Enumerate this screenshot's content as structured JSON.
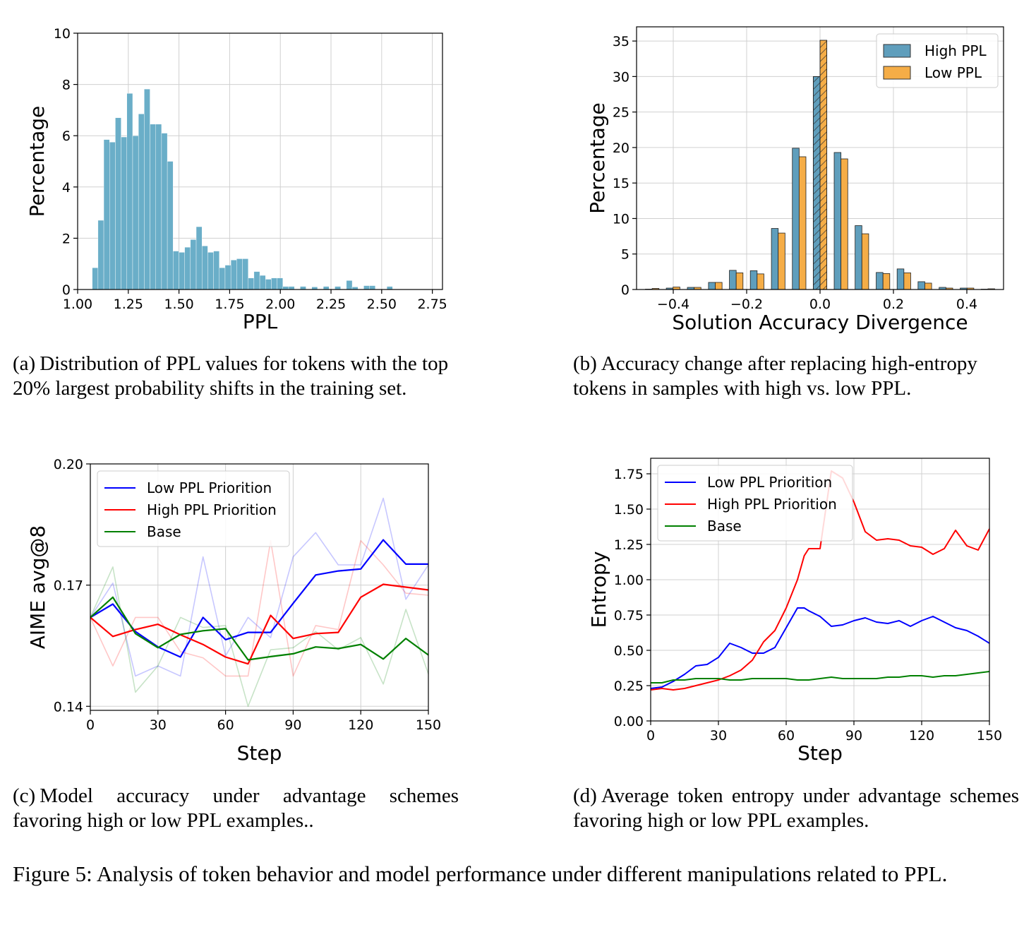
{
  "panels": {
    "a": {
      "caption_prefix": "(a)",
      "caption": "Distribution of PPL values for tokens with the top 20% largest probability shifts in the training set."
    },
    "b": {
      "caption_prefix": "(b)",
      "caption": "Accuracy change after replacing high-entropy tokens in samples with high vs. low PPL."
    },
    "c": {
      "caption_prefix": "(c)",
      "caption": "Model accuracy under advantage schemes favoring high or low PPL examples.."
    },
    "d": {
      "caption_prefix": "(d)",
      "caption": "Average token entropy under advantage schemes favoring high or low PPL examples."
    }
  },
  "figure_caption": "Figure 5: Analysis of token behavior and model performance under different manipulations related to PPL.",
  "colors": {
    "hist": "#6aaec8",
    "high_ppl_bar": "#5f9ebc",
    "low_ppl_bar": "#f5ad47",
    "blue": "#0000ff",
    "red": "#ff0000",
    "green": "#008000",
    "grid": "#d0d0d0"
  },
  "chart_data": [
    {
      "id": "a",
      "type": "bar",
      "xlabel": "PPL",
      "ylabel": "Percentage",
      "xlim": [
        1.0,
        2.8
      ],
      "ylim": [
        0,
        10
      ],
      "xticks": [
        1.0,
        1.25,
        1.5,
        1.75,
        2.0,
        2.25,
        2.5,
        2.75
      ],
      "xtick_labels": [
        "1.00",
        "1.25",
        "1.50",
        "1.75",
        "2.00",
        "2.25",
        "2.50",
        "2.75"
      ],
      "yticks": [
        0,
        2,
        4,
        6,
        8,
        10
      ],
      "ytick_labels": [
        "0",
        "2",
        "4",
        "6",
        "8",
        "10"
      ],
      "grid": true,
      "bin_width": 0.0285,
      "bin_start": 1.072,
      "values": [
        0.85,
        2.7,
        5.85,
        5.75,
        6.7,
        5.95,
        7.65,
        6.0,
        6.85,
        7.82,
        6.45,
        6.45,
        6.1,
        5.0,
        1.5,
        1.45,
        1.65,
        1.95,
        2.45,
        1.7,
        1.45,
        1.5,
        0.85,
        0.95,
        1.15,
        1.2,
        1.2,
        0.45,
        0.7,
        0.55,
        0.4,
        0.45,
        0.45,
        0.12,
        0.12,
        0,
        0.12,
        0,
        0.1,
        0,
        0.12,
        0,
        0.12,
        0,
        0.35,
        0.1,
        0,
        0.15,
        0.15,
        0,
        0,
        0.12
      ]
    },
    {
      "id": "b",
      "type": "bar",
      "xlabel": "Solution Accuracy Divergence",
      "ylabel": "Percentage",
      "xlim": [
        -0.5,
        0.5
      ],
      "ylim": [
        0,
        37
      ],
      "xticks": [
        -0.4,
        -0.2,
        0.0,
        0.2,
        0.4
      ],
      "xtick_labels": [
        "−0.4",
        "−0.2",
        "0.0",
        "0.2",
        "0.4"
      ],
      "yticks": [
        0,
        5,
        10,
        15,
        20,
        25,
        30,
        35
      ],
      "ytick_labels": [
        "0",
        "5",
        "10",
        "15",
        "20",
        "25",
        "30",
        "35"
      ],
      "grid": true,
      "legend_position": "top-right",
      "categories": [
        -0.4575,
        -0.4005,
        -0.343,
        -0.2855,
        -0.2285,
        -0.1715,
        -0.114,
        -0.057,
        0.0,
        0.057,
        0.114,
        0.1715,
        0.2285,
        0.2855,
        0.343,
        0.4005,
        0.4575
      ],
      "series": [
        {
          "name": "High PPL",
          "values": [
            0.05,
            0.2,
            0.3,
            1.0,
            2.7,
            2.65,
            8.6,
            19.9,
            30.0,
            19.3,
            9.0,
            2.4,
            2.9,
            1.1,
            0.3,
            0.2,
            0.05
          ]
        },
        {
          "name": "Low PPL",
          "values": [
            0.15,
            0.35,
            0.3,
            1.0,
            2.35,
            2.2,
            7.95,
            18.7,
            35.1,
            18.4,
            7.85,
            2.25,
            2.35,
            0.9,
            0.2,
            0.2,
            0.1
          ]
        }
      ],
      "hatched_category": 0.0
    },
    {
      "id": "c",
      "type": "line",
      "xlabel": "Step",
      "ylabel": "AIME avg@8",
      "xlim": [
        0,
        150
      ],
      "ylim": [
        0.139,
        0.2
      ],
      "xticks": [
        0,
        30,
        60,
        90,
        120,
        150
      ],
      "xtick_labels": [
        "0",
        "30",
        "60",
        "90",
        "120",
        "150"
      ],
      "yticks": [
        0.14,
        0.17,
        0.2
      ],
      "ytick_labels": [
        "0.14",
        "0.17",
        "0.20"
      ],
      "grid": true,
      "legend_position": "top-left",
      "x": [
        0,
        10,
        20,
        30,
        40,
        50,
        60,
        70,
        80,
        90,
        100,
        110,
        120,
        130,
        140,
        150
      ],
      "series": [
        {
          "name": "Low PPL Priorition",
          "values": [
            0.162,
            0.1653,
            0.1585,
            0.1547,
            0.1522,
            0.162,
            0.1565,
            0.1583,
            0.1583,
            0.1655,
            0.1725,
            0.1735,
            0.174,
            0.1812,
            0.1752,
            0.1752
          ]
        },
        {
          "name": "High PPL Priorition",
          "values": [
            0.162,
            0.1573,
            0.159,
            0.1603,
            0.1577,
            0.1553,
            0.1522,
            0.1505,
            0.1625,
            0.1568,
            0.158,
            0.1583,
            0.167,
            0.1702,
            0.1695,
            0.1688
          ]
        },
        {
          "name": "Base",
          "values": [
            0.162,
            0.167,
            0.158,
            0.1545,
            0.1578,
            0.1587,
            0.1592,
            0.1515,
            0.1523,
            0.153,
            0.1547,
            0.1543,
            0.1553,
            0.1517,
            0.1568,
            0.1527
          ]
        }
      ],
      "raw_series": [
        {
          "values": [
            0.162,
            0.1705,
            0.1475,
            0.15,
            0.1475,
            0.177,
            0.1525,
            0.162,
            0.157,
            0.177,
            0.183,
            0.175,
            0.175,
            0.1915,
            0.1665,
            0.175
          ]
        },
        {
          "values": [
            0.162,
            0.15,
            0.162,
            0.162,
            0.1535,
            0.152,
            0.1475,
            0.1475,
            0.181,
            0.1475,
            0.16,
            0.159,
            0.181,
            0.175,
            0.168,
            0.1675
          ]
        },
        {
          "values": [
            0.162,
            0.1745,
            0.1435,
            0.15,
            0.162,
            0.1595,
            0.16,
            0.14,
            0.154,
            0.1545,
            0.1585,
            0.154,
            0.157,
            0.1455,
            0.164,
            0.148
          ]
        }
      ]
    },
    {
      "id": "d",
      "type": "line",
      "xlabel": "Step",
      "ylabel": "Entropy",
      "xlim": [
        0,
        150
      ],
      "ylim": [
        0,
        1.86
      ],
      "xticks": [
        0,
        30,
        60,
        90,
        120,
        150
      ],
      "xtick_labels": [
        "0",
        "30",
        "60",
        "90",
        "120",
        "150"
      ],
      "yticks": [
        0,
        0.25,
        0.5,
        0.75,
        1.0,
        1.25,
        1.5,
        1.75
      ],
      "ytick_labels": [
        "0.00",
        "0.25",
        "0.50",
        "0.75",
        "1.00",
        "1.25",
        "1.50",
        "1.75"
      ],
      "grid": true,
      "legend_position": "top-left",
      "x": [
        0,
        5,
        10,
        15,
        20,
        25,
        30,
        35,
        40,
        45,
        50,
        55,
        60,
        65,
        68,
        70,
        75,
        80,
        85,
        90,
        95,
        100,
        105,
        110,
        115,
        120,
        125,
        130,
        135,
        140,
        145,
        150
      ],
      "series": [
        {
          "name": "Low PPL Priorition",
          "values": [
            0.23,
            0.24,
            0.28,
            0.33,
            0.39,
            0.4,
            0.45,
            0.55,
            0.52,
            0.48,
            0.48,
            0.52,
            0.66,
            0.8,
            0.8,
            0.78,
            0.74,
            0.67,
            0.68,
            0.71,
            0.73,
            0.7,
            0.69,
            0.71,
            0.67,
            0.71,
            0.74,
            0.7,
            0.66,
            0.64,
            0.6,
            0.55
          ]
        },
        {
          "name": "High PPL Priorition",
          "values": [
            0.22,
            0.23,
            0.22,
            0.23,
            0.25,
            0.27,
            0.29,
            0.32,
            0.36,
            0.43,
            0.56,
            0.64,
            0.8,
            1.0,
            1.17,
            1.22,
            1.22,
            1.77,
            1.72,
            1.55,
            1.34,
            1.28,
            1.29,
            1.28,
            1.24,
            1.23,
            1.18,
            1.22,
            1.35,
            1.24,
            1.21,
            1.36
          ]
        },
        {
          "name": "Base",
          "values": [
            0.27,
            0.27,
            0.29,
            0.29,
            0.3,
            0.3,
            0.3,
            0.29,
            0.29,
            0.3,
            0.3,
            0.3,
            0.3,
            0.29,
            0.29,
            0.29,
            0.3,
            0.31,
            0.3,
            0.3,
            0.3,
            0.3,
            0.31,
            0.31,
            0.32,
            0.32,
            0.31,
            0.32,
            0.32,
            0.33,
            0.34,
            0.35
          ]
        }
      ]
    }
  ]
}
